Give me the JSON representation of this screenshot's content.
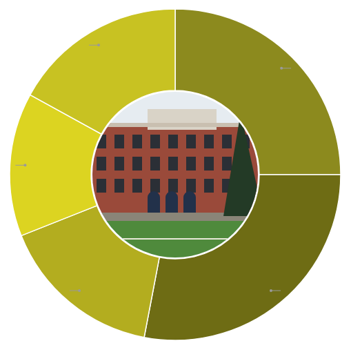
{
  "chart_data": {
    "type": "donut",
    "values": [
      25,
      28,
      16,
      14,
      17
    ],
    "colors": [
      "#8c8a1e",
      "#6e6c14",
      "#b3ad1f",
      "#dcd421",
      "#c8c222"
    ]
  }
}
